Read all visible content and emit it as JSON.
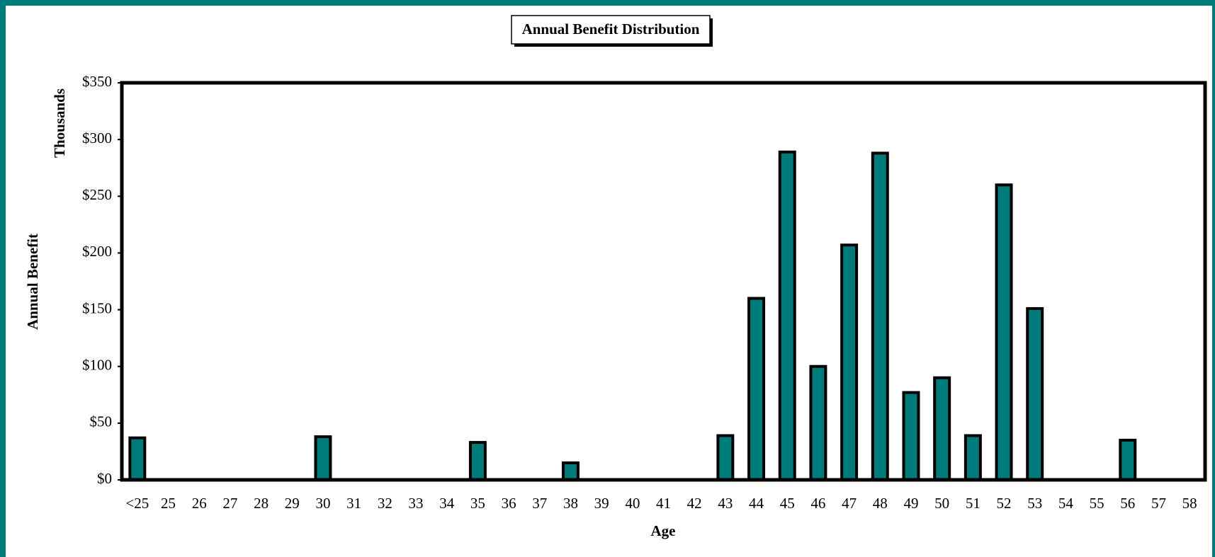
{
  "chart_data": {
    "type": "bar",
    "title": "Annual Benefit Distribution",
    "y_label": "Annual Benefit",
    "y_unit_label": "Thousands",
    "x_label": "Age",
    "categories": [
      "<25",
      "25",
      "26",
      "27",
      "28",
      "29",
      "30",
      "31",
      "32",
      "33",
      "34",
      "35",
      "36",
      "37",
      "38",
      "39",
      "40",
      "41",
      "42",
      "43",
      "44",
      "45",
      "46",
      "47",
      "48",
      "49",
      "50",
      "51",
      "52",
      "53",
      "54",
      "55",
      "56",
      "57",
      "58"
    ],
    "values": [
      37,
      0,
      0,
      0,
      0,
      0,
      38,
      0,
      0,
      0,
      0,
      33,
      0,
      0,
      15,
      0,
      0,
      0,
      0,
      39,
      160,
      289,
      100,
      207,
      288,
      77,
      90,
      39,
      260,
      151,
      0,
      0,
      35,
      0,
      0
    ],
    "color": "#007b7b",
    "ylim": [
      0,
      350
    ],
    "yticks": [
      {
        "value": 0,
        "label": "$0"
      },
      {
        "value": 50,
        "label": "$50"
      },
      {
        "value": 100,
        "label": "$100"
      },
      {
        "value": 150,
        "label": "$150"
      },
      {
        "value": 200,
        "label": "$200"
      },
      {
        "value": 250,
        "label": "$250"
      },
      {
        "value": 300,
        "label": "$300"
      },
      {
        "value": 350,
        "label": "$350"
      }
    ],
    "grid": false
  }
}
